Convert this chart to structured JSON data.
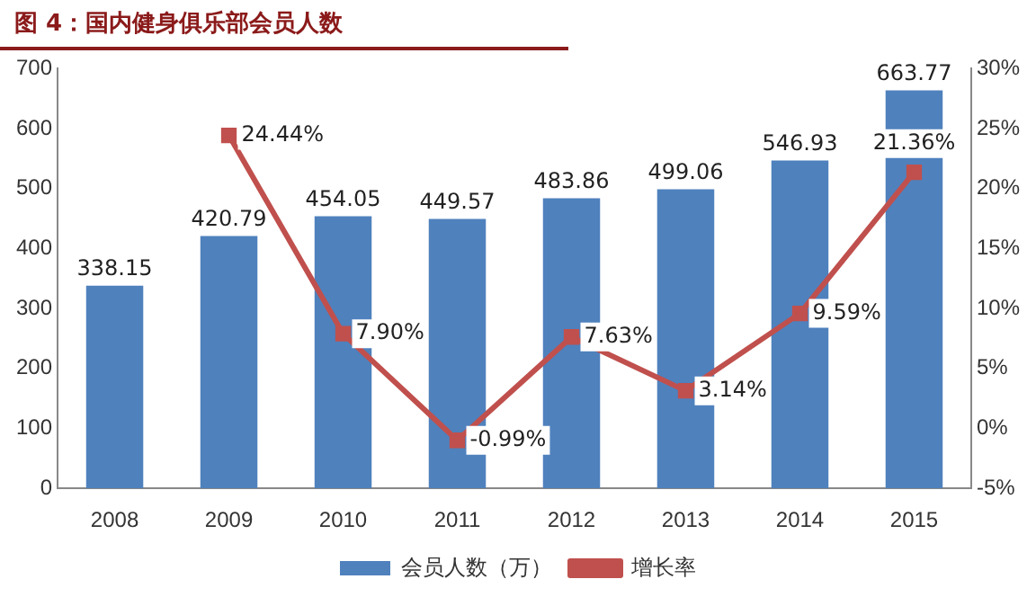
{
  "chart_data": {
    "type": "bar",
    "title": "图 4：国内健身俱乐部会员人数",
    "categories": [
      "2008",
      "2009",
      "2010",
      "2011",
      "2012",
      "2013",
      "2014",
      "2015"
    ],
    "series": [
      {
        "name": "会员人数（万）",
        "color": "#4f81bd",
        "values": [
          338.15,
          420.79,
          454.05,
          449.57,
          483.86,
          499.06,
          546.93,
          663.77
        ],
        "value_labels": [
          "338.15",
          "420.79",
          "454.05",
          "449.57",
          "483.86",
          "499.06",
          "546.93",
          "663.77"
        ]
      },
      {
        "name": "增长率",
        "type": "line",
        "axis": "y2",
        "color": "#c0504d",
        "marker": "square",
        "values": [
          null,
          24.44,
          7.9,
          -0.99,
          7.63,
          3.14,
          9.59,
          21.36
        ],
        "value_labels": [
          null,
          "24.44%",
          "7.90%",
          "-0.99%",
          "7.63%",
          "3.14%",
          "9.59%",
          "21.36%"
        ]
      }
    ],
    "ylim": [
      0,
      700
    ],
    "yticks": [
      0,
      100,
      200,
      300,
      400,
      500,
      600,
      700
    ],
    "y2lim": [
      -5,
      30
    ],
    "y2ticks": [
      {
        "value": -5,
        "label": "-5%"
      },
      {
        "value": 0,
        "label": "0%"
      },
      {
        "value": 5,
        "label": "5%"
      },
      {
        "value": 10,
        "label": "10%"
      },
      {
        "value": 15,
        "label": "15%"
      },
      {
        "value": 20,
        "label": "20%"
      },
      {
        "value": 25,
        "label": "25%"
      },
      {
        "value": 30,
        "label": "30%"
      }
    ],
    "grid": false,
    "legend": "bottom"
  }
}
